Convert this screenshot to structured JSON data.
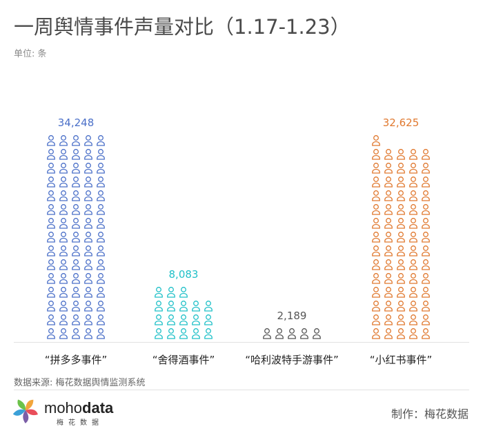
{
  "header": {
    "title": "一周舆情事件声量对比（1.17-1.23）",
    "unit": "单位: 条"
  },
  "chart_data": {
    "type": "bar",
    "style": "pictogram",
    "icon": "person-icon",
    "categories": [
      "“拼多多事件”",
      "“舍得酒事件”",
      "“哈利波特手游事件”",
      "“小红书事件”"
    ],
    "values": [
      34248,
      8083,
      2189,
      32625
    ],
    "value_labels": [
      "34,248",
      "8,083",
      "2,189",
      "32,625"
    ],
    "icon_counts": [
      75,
      18,
      5,
      71
    ],
    "colors": [
      "#4a6fc8",
      "#1fc0c8",
      "#555555",
      "#e0782e"
    ],
    "title": "",
    "xlabel": "",
    "ylabel": ""
  },
  "footer": {
    "source": "数据来源: 梅花数据舆情监测系统",
    "brand_prefix": "moho",
    "brand_suffix": "data",
    "brand_sub": "梅花数据",
    "maker": "制作：梅花数据"
  },
  "logo_colors": [
    "#f2a53b",
    "#e94e5a",
    "#7b5ea7",
    "#3aa0d8",
    "#6cc24a"
  ]
}
